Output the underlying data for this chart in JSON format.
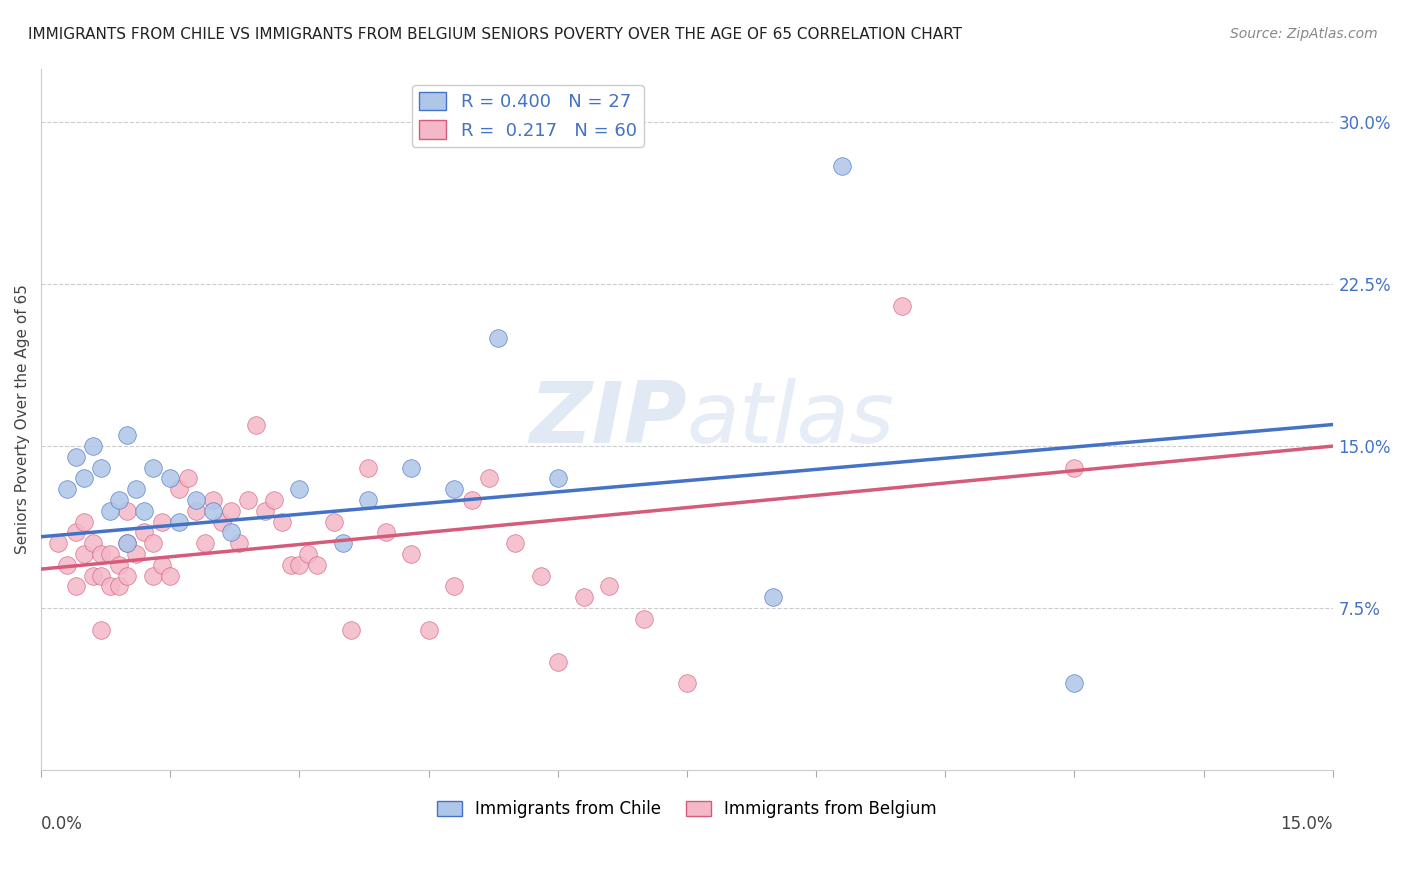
{
  "title": "IMMIGRANTS FROM CHILE VS IMMIGRANTS FROM BELGIUM SENIORS POVERTY OVER THE AGE OF 65 CORRELATION CHART",
  "source": "Source: ZipAtlas.com",
  "ylabel": "Seniors Poverty Over the Age of 65",
  "xmin": 0.0,
  "xmax": 0.15,
  "ymin": 0.0,
  "ymax": 0.325,
  "yticks": [
    0.075,
    0.15,
    0.225,
    0.3
  ],
  "ytick_labels": [
    "7.5%",
    "15.0%",
    "22.5%",
    "30.0%"
  ],
  "chile_color": "#aec6e8",
  "chile_line_color": "#4472c4",
  "belgium_color": "#f4b8c8",
  "belgium_line_color": "#d45c7a",
  "chile_R": 0.4,
  "chile_N": 27,
  "belgium_R": 0.217,
  "belgium_N": 60,
  "chile_scatter_x": [
    0.003,
    0.004,
    0.005,
    0.006,
    0.007,
    0.008,
    0.009,
    0.01,
    0.01,
    0.011,
    0.012,
    0.013,
    0.015,
    0.016,
    0.018,
    0.02,
    0.022,
    0.03,
    0.035,
    0.038,
    0.043,
    0.048,
    0.053,
    0.06,
    0.085,
    0.093,
    0.12
  ],
  "chile_scatter_y": [
    0.13,
    0.145,
    0.135,
    0.15,
    0.14,
    0.12,
    0.125,
    0.155,
    0.105,
    0.13,
    0.12,
    0.14,
    0.135,
    0.115,
    0.125,
    0.12,
    0.11,
    0.13,
    0.105,
    0.125,
    0.14,
    0.13,
    0.2,
    0.135,
    0.08,
    0.28,
    0.04
  ],
  "belgium_scatter_x": [
    0.002,
    0.003,
    0.004,
    0.004,
    0.005,
    0.005,
    0.006,
    0.006,
    0.007,
    0.007,
    0.007,
    0.008,
    0.008,
    0.009,
    0.009,
    0.01,
    0.01,
    0.01,
    0.011,
    0.012,
    0.013,
    0.013,
    0.014,
    0.014,
    0.015,
    0.016,
    0.017,
    0.018,
    0.019,
    0.02,
    0.021,
    0.022,
    0.023,
    0.024,
    0.025,
    0.026,
    0.027,
    0.028,
    0.029,
    0.03,
    0.031,
    0.032,
    0.034,
    0.036,
    0.038,
    0.04,
    0.043,
    0.045,
    0.048,
    0.05,
    0.052,
    0.055,
    0.058,
    0.06,
    0.063,
    0.066,
    0.07,
    0.075,
    0.1,
    0.12
  ],
  "belgium_scatter_y": [
    0.105,
    0.095,
    0.11,
    0.085,
    0.115,
    0.1,
    0.105,
    0.09,
    0.1,
    0.09,
    0.065,
    0.085,
    0.1,
    0.095,
    0.085,
    0.12,
    0.105,
    0.09,
    0.1,
    0.11,
    0.105,
    0.09,
    0.115,
    0.095,
    0.09,
    0.13,
    0.135,
    0.12,
    0.105,
    0.125,
    0.115,
    0.12,
    0.105,
    0.125,
    0.16,
    0.12,
    0.125,
    0.115,
    0.095,
    0.095,
    0.1,
    0.095,
    0.115,
    0.065,
    0.14,
    0.11,
    0.1,
    0.065,
    0.085,
    0.125,
    0.135,
    0.105,
    0.09,
    0.05,
    0.08,
    0.085,
    0.07,
    0.04,
    0.215,
    0.14
  ],
  "chile_trend_x0": 0.0,
  "chile_trend_y0": 0.108,
  "chile_trend_x1": 0.15,
  "chile_trend_y1": 0.16,
  "belgium_trend_x0": 0.0,
  "belgium_trend_y0": 0.093,
  "belgium_trend_x1": 0.15,
  "belgium_trend_y1": 0.15
}
